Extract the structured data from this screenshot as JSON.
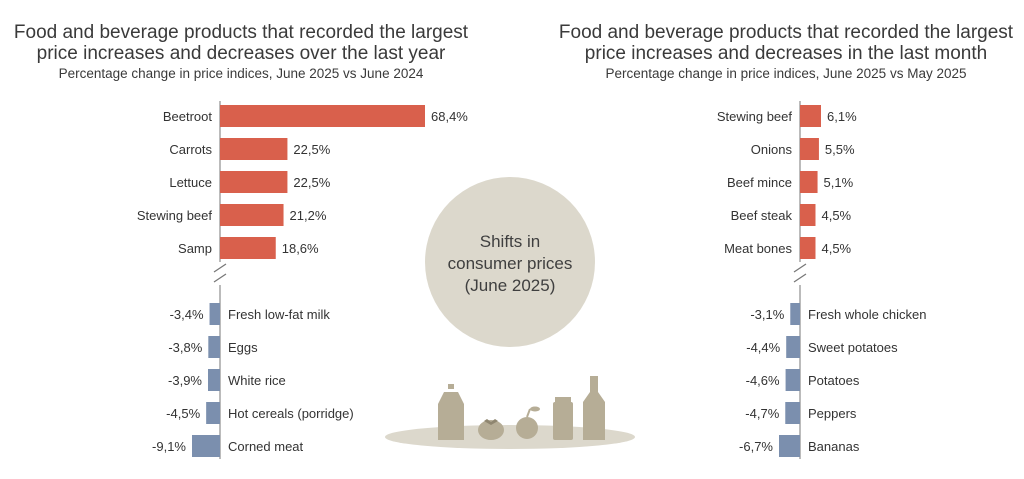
{
  "colors": {
    "increase": "#d9604c",
    "decrease": "#7b8fae",
    "axis": "#777777",
    "circle": "#dcd8cc",
    "illustration": "#b6ad96",
    "text": "#333333"
  },
  "center_label": [
    "Shifts in",
    "consumer prices",
    "(June 2025)"
  ],
  "chart_data": [
    {
      "type": "bar",
      "orientation": "horizontal",
      "title": "Food and beverage products that recorded the largest price increases and decreases over the last year",
      "title_lines": [
        "Food and beverage products that recorded the largest",
        "price increases and decreases over the last year"
      ],
      "subtitle": "Percentage change in price indices, June 2025 vs June 2024",
      "axis_break": true,
      "series": [
        {
          "name": "Increases",
          "categories": [
            "Beetroot",
            "Carrots",
            "Lettuce",
            "Stewing beef",
            "Samp"
          ],
          "values": [
            68.4,
            22.5,
            22.5,
            21.2,
            18.6
          ],
          "labels": [
            "68,4%",
            "22,5%",
            "22,5%",
            "21,2%",
            "18,6%"
          ]
        },
        {
          "name": "Decreases",
          "categories": [
            "Fresh low-fat milk",
            "Eggs",
            "White rice",
            "Hot cereals (porridge)",
            "Corned meat"
          ],
          "values": [
            -3.4,
            -3.8,
            -3.9,
            -4.5,
            -9.1
          ],
          "labels": [
            "-3,4%",
            "-3,8%",
            "-3,9%",
            "-4,5%",
            "-9,1%"
          ]
        }
      ]
    },
    {
      "type": "bar",
      "orientation": "horizontal",
      "title": "Food and beverage products that recorded the largest price increases and decreases in the last month",
      "title_lines": [
        "Food and beverage products that recorded the largest",
        "price increases and decreases in the last month"
      ],
      "subtitle": "Percentage change in price indices, June 2025 vs May 2025",
      "axis_break": true,
      "series": [
        {
          "name": "Increases",
          "categories": [
            "Stewing beef",
            "Onions",
            "Beef mince",
            "Beef steak",
            "Meat bones"
          ],
          "values": [
            6.1,
            5.5,
            5.1,
            4.5,
            4.5
          ],
          "labels": [
            "6,1%",
            "5,5%",
            "5,1%",
            "4,5%",
            "4,5%"
          ]
        },
        {
          "name": "Decreases",
          "categories": [
            "Fresh whole chicken",
            "Sweet potatoes",
            "Potatoes",
            "Peppers",
            "Bananas"
          ],
          "values": [
            -3.1,
            -4.4,
            -4.6,
            -4.7,
            -6.7
          ],
          "labels": [
            "-3,1%",
            "-4,4%",
            "-4,6%",
            "-4,7%",
            "-6,7%"
          ]
        }
      ]
    }
  ]
}
